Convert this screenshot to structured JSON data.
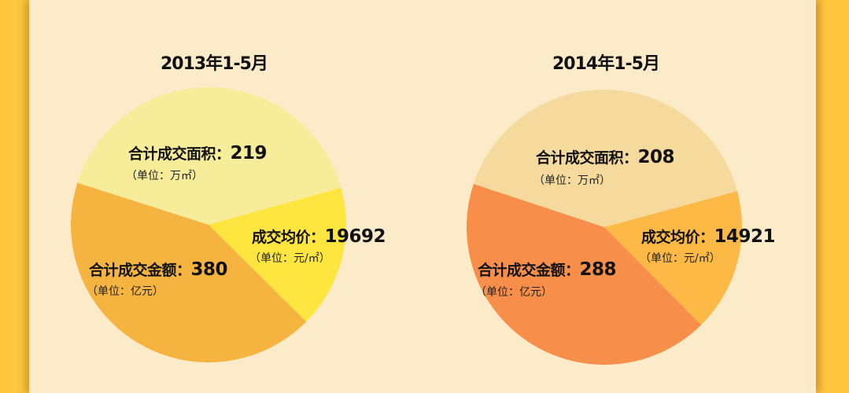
{
  "chart_data": [
    {
      "type": "pie",
      "title": "2013年1-5月",
      "slices": [
        {
          "label": "合计成交面积：",
          "value": "219",
          "unit": "（单位：万㎡）",
          "share": 40.7,
          "color": "#f7ec9a"
        },
        {
          "label": "成交均价：",
          "value": "19692",
          "unit": "（单位：元/㎡）",
          "share": 16.8,
          "color": "#fee540"
        },
        {
          "label": "合计成交金额：",
          "value": "380",
          "unit": "（单位：亿元）",
          "share": 42.5,
          "color": "#f5b440"
        }
      ]
    },
    {
      "type": "pie",
      "title": "2014年1-5月",
      "slices": [
        {
          "label": "合计成交面积：",
          "value": "208",
          "unit": "（单位：万㎡）",
          "share": 40.7,
          "color": "#f6d99c"
        },
        {
          "label": "成交均价：",
          "value": "14921",
          "unit": "（单位：元/㎡）",
          "share": 16.8,
          "color": "#fcb946"
        },
        {
          "label": "合计成交金额：",
          "value": "288",
          "unit": "（单位：亿元）",
          "share": 42.5,
          "color": "#f78e4a"
        }
      ]
    }
  ],
  "colors": {
    "side_bar": "#ffc63f",
    "panel_bg": "#fcebc9"
  }
}
